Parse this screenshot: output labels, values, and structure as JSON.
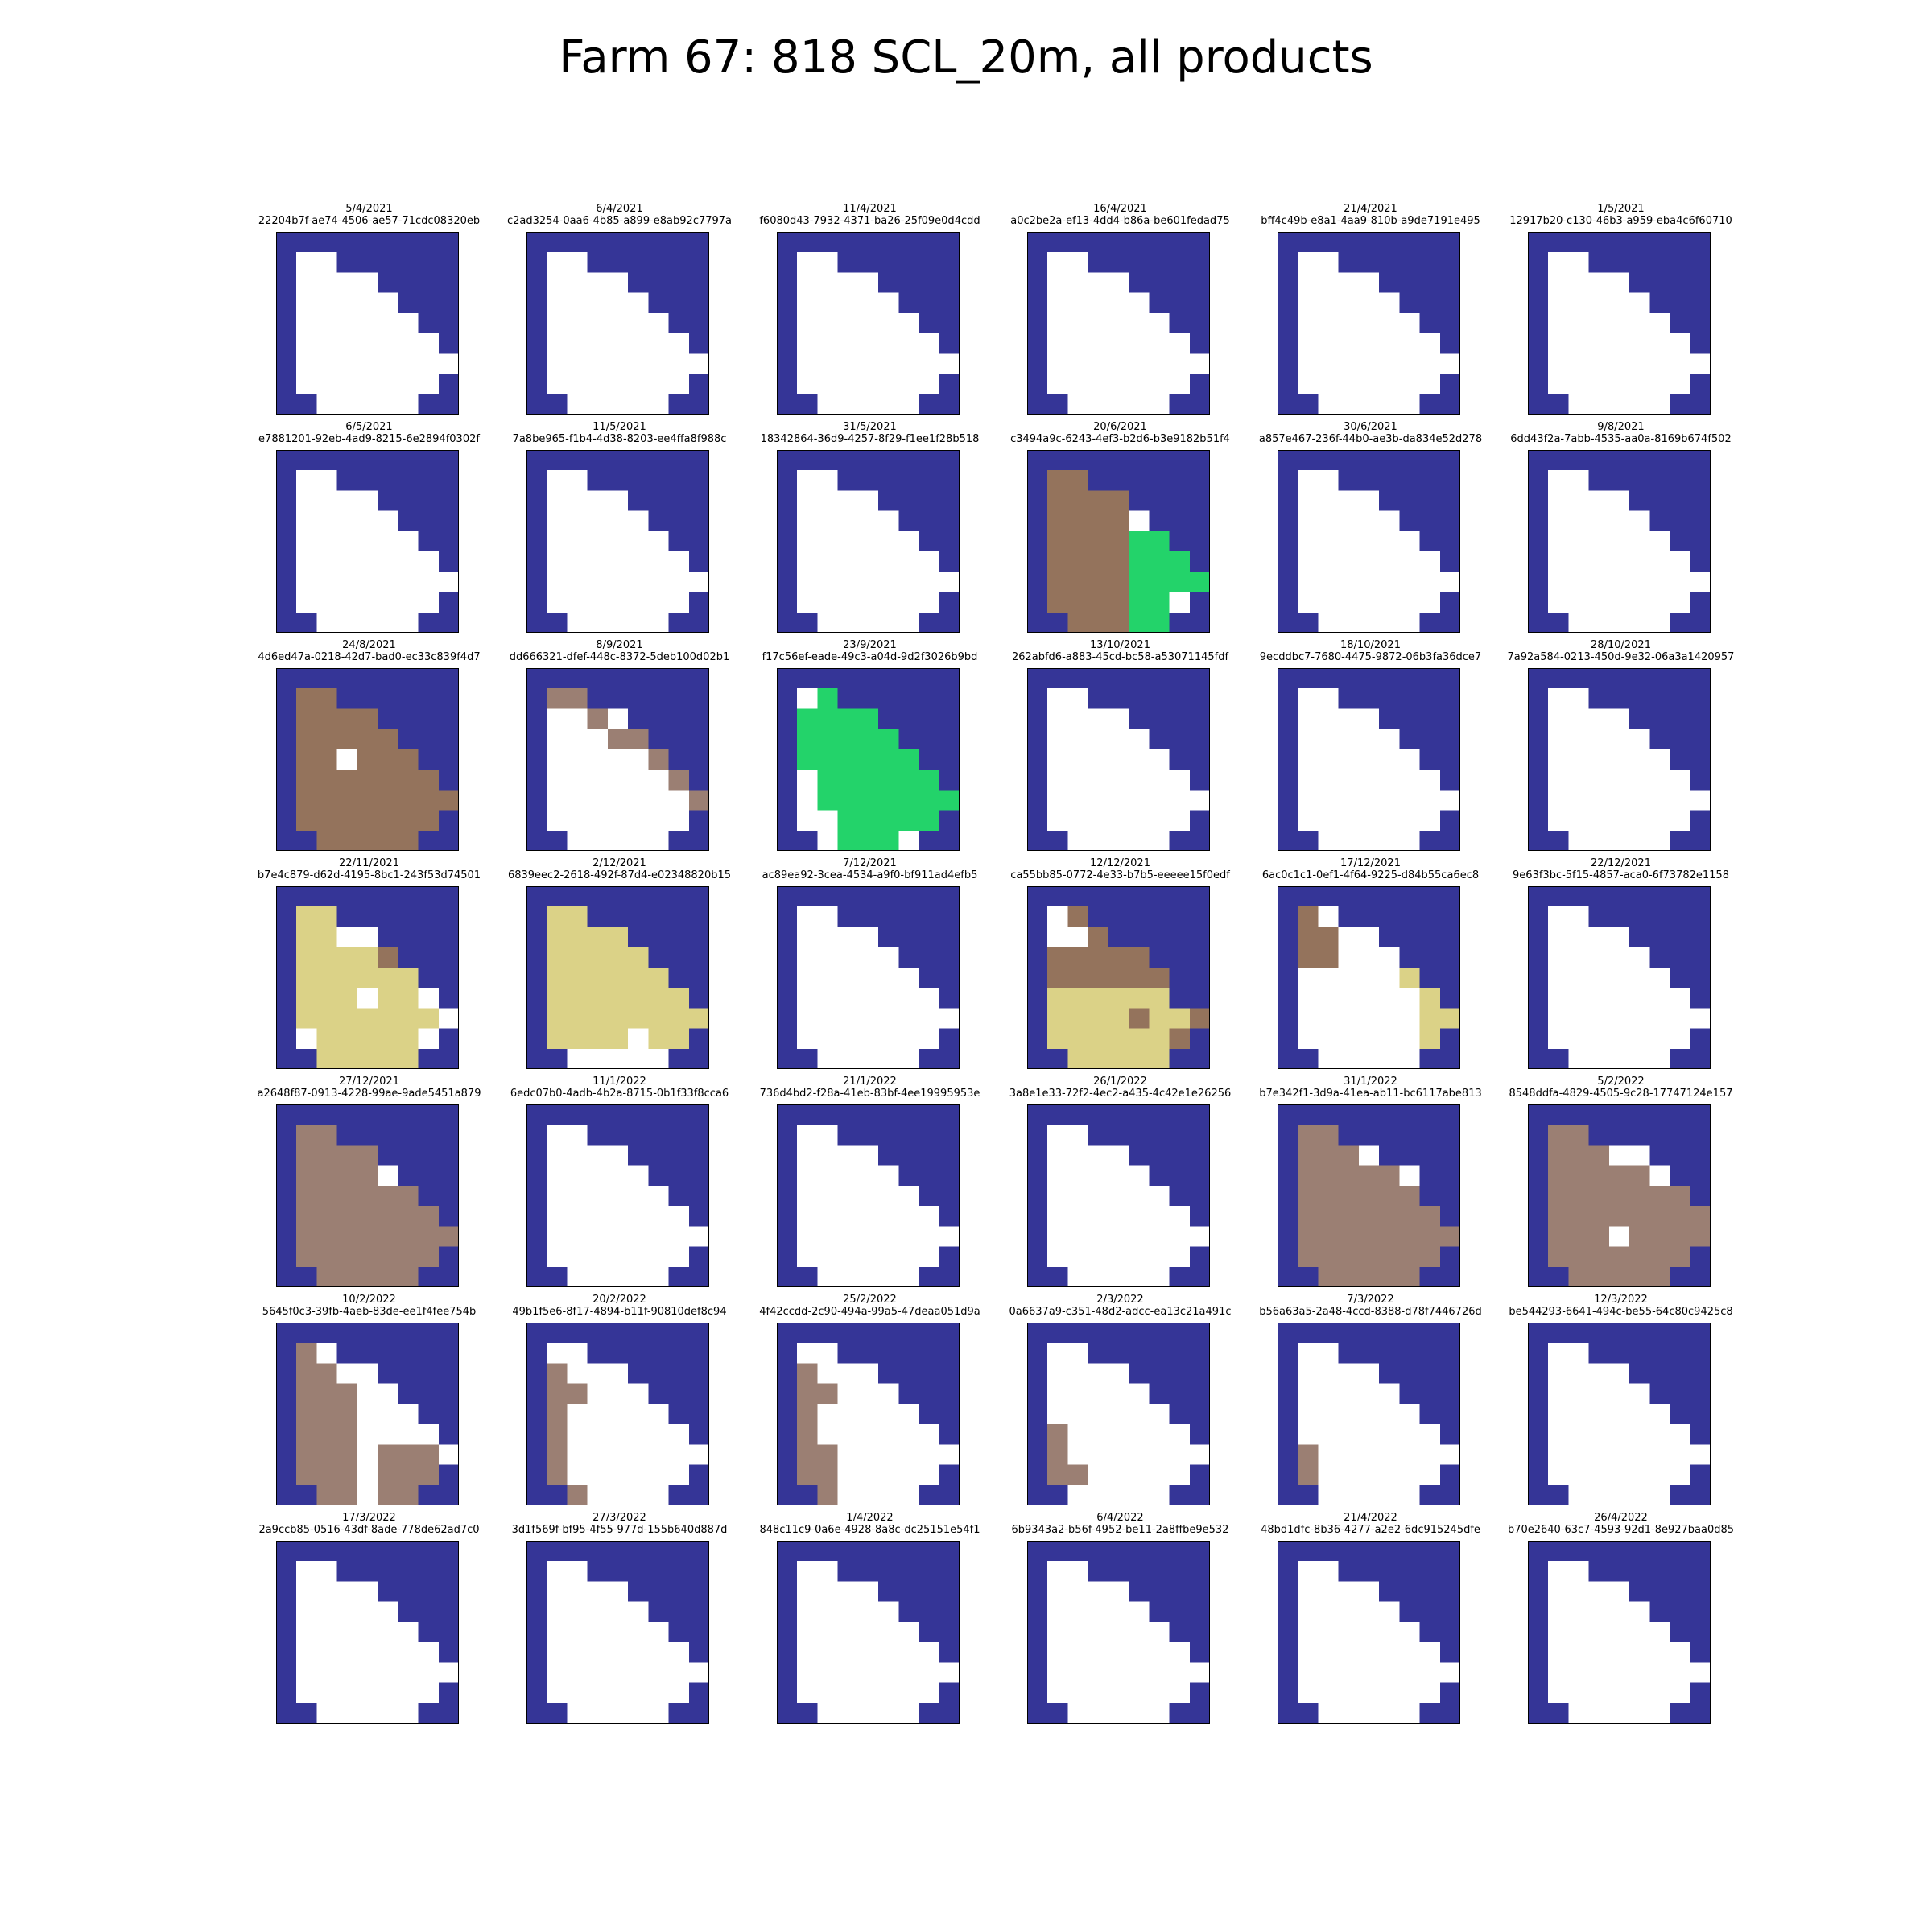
{
  "title": "Farm 67: 818 SCL_20m, all products",
  "chart_data": {
    "type": "heatmap",
    "title": "Farm 67: 818 SCL_20m, all products",
    "grid": false,
    "palette": {
      "W": "#ffffff",
      "N": "#353597",
      "B": "#94735c",
      "T": "#9b7f73",
      "G": "#23d36a",
      "Y": "#dbd287"
    },
    "base_mask": [
      "NNNNNNNNN",
      "NWWNNNNNN",
      "NWWWWNNNN",
      "NWWWWWNNN",
      "NWWWWWWNN",
      "NWWWWWWWN",
      "NWWWWWWWW",
      "NWWWWWWWN",
      "NNWWWWWNN"
    ],
    "panels": [
      {
        "date": "5/4/2021",
        "id": "22204b7f-ae74-4506-ae57-71cdc08320eb",
        "overlay": []
      },
      {
        "date": "6/4/2021",
        "id": "c2ad3254-0aa6-4b85-a899-e8ab92c7797a",
        "overlay": []
      },
      {
        "date": "11/4/2021",
        "id": "f6080d43-7932-4371-ba26-25f09e0d4cdd",
        "overlay": []
      },
      {
        "date": "16/4/2021",
        "id": "a0c2be2a-ef13-4dd4-b86a-be601fedad75",
        "overlay": []
      },
      {
        "date": "21/4/2021",
        "id": "bff4c49b-e8a1-4aa9-810b-a9de7191e495",
        "overlay": []
      },
      {
        "date": "1/5/2021",
        "id": "12917b20-c130-46b3-a959-eba4c6f60710",
        "overlay": []
      },
      {
        "date": "6/5/2021",
        "id": "e7881201-92eb-4ad9-8215-6e2894f0302f",
        "overlay": []
      },
      {
        "date": "11/5/2021",
        "id": "7a8be965-f1b4-4d38-8203-ee4ffa8f988c",
        "overlay": []
      },
      {
        "date": "31/5/2021",
        "id": "18342864-36d9-4257-8f29-f1ee1f28b518",
        "overlay": []
      },
      {
        "date": "20/6/2021",
        "id": "c3494a9c-6243-4ef3-b2d6-b3e9182b51f4",
        "overlay": [
          ".........",
          ".BB......",
          ".BBBB....",
          ".BBBBW...",
          ".BBBBGG..",
          ".BBBBGGG.",
          ".BBBBGGGG",
          ".BBBBGG..",
          "..BBBGG.."
        ]
      },
      {
        "date": "30/6/2021",
        "id": "a857e467-236f-44b0-ae3b-da834e52d278",
        "overlay": []
      },
      {
        "date": "9/8/2021",
        "id": "6dd43f2a-7abb-4535-aa0a-8169b674f502",
        "overlay": []
      },
      {
        "date": "24/8/2021",
        "id": "4d6ed47a-0218-42d7-bad0-ec33c839f4d7",
        "overlay": [
          ".........",
          ".BB......",
          ".BBBB....",
          ".BBBBB...",
          ".BBWBBB..",
          ".BBBBBBB.",
          ".BBBBBBBB",
          ".BBBBBBB.",
          "..BBBBB.."
        ]
      },
      {
        "date": "8/9/2021",
        "id": "dd666321-dfef-448c-8372-5deb100d02b1",
        "overlay": [
          ".........",
          ".TT......",
          ".WWT.....",
          ".WWWTT...",
          ".WWWWWT..",
          ".WWWWWWT.",
          ".WWWWWWWT",
          ".........",
          "........."
        ]
      },
      {
        "date": "23/9/2021",
        "id": "f17c56ef-eade-49c3-a04d-9d2f3026b9bd",
        "overlay": [
          ".........",
          ".WG......",
          ".GGGG....",
          ".GGGGG...",
          ".GGGGGG..",
          ".WGGGGGG.",
          ".WGGGGGGG",
          ".WWGGGGG.",
          "..WGGGW.."
        ]
      },
      {
        "date": "13/10/2021",
        "id": "262abfd6-a883-45cd-bc58-a53071145fdf",
        "overlay": []
      },
      {
        "date": "18/10/2021",
        "id": "9ecddbc7-7680-4475-9872-06b3fa36dce7",
        "overlay": []
      },
      {
        "date": "28/10/2021",
        "id": "7a92a584-0213-450d-9e32-06a3a1420957",
        "overlay": []
      },
      {
        "date": "22/11/2021",
        "id": "b7e4c879-d62d-4195-8bc1-243f53d74501",
        "overlay": [
          ".........",
          ".YY......",
          ".YYWW....",
          ".YYYYB...",
          ".YYYYYY..",
          ".YYYWYY..",
          ".YYYYYYYW",
          ".WYYYYY..",
          "..YYYYY.."
        ]
      },
      {
        "date": "2/12/2021",
        "id": "6839eec2-2618-492f-87d4-e02348820b15",
        "overlay": [
          ".........",
          ".YY......",
          ".YYYY....",
          ".YYYYY...",
          ".YYYYYY..",
          ".YYYYYYY.",
          ".YYYYYYYY",
          ".YYYYWYY.",
          "..WWWWW.."
        ]
      },
      {
        "date": "7/12/2021",
        "id": "ac89ea92-3cea-4534-a9f0-bf911ad4efb5",
        "overlay": []
      },
      {
        "date": "12/12/2021",
        "id": "ca55bb85-0772-4e33-b7b5-eeeee15f0edf",
        "overlay": [
          ".........",
          ".WB......",
          ".WWBN....",
          ".BBBBB...",
          ".BBBBBB..",
          ".YYYYYYN.",
          ".YYYYBYYB",
          ".YYYYYYB.",
          "..YYYYY.."
        ]
      },
      {
        "date": "17/12/2021",
        "id": "6ac0c1c1-0ef1-4f64-9225-d84b55ca6ec8",
        "overlay": [
          ".........",
          ".BW......",
          ".BBWW....",
          ".BBWWW...",
          ".WWWWWY..",
          ".WWWWWWY.",
          ".WWWWWWYY",
          ".WWWWWWY.",
          "..WWWWW.."
        ]
      },
      {
        "date": "22/12/2021",
        "id": "9e63f3bc-5f15-4857-aca0-6f73782e1158",
        "overlay": []
      },
      {
        "date": "27/12/2021",
        "id": "a2648f87-0913-4228-99ae-9ade5451a879",
        "overlay": [
          ".........",
          ".TT......",
          ".TTTT....",
          ".TTTTW...",
          ".TTTTTT..",
          ".TTTTTTT.",
          ".TTTTTTTT",
          ".TTTTTTT.",
          "..TTTTT.."
        ]
      },
      {
        "date": "11/1/2022",
        "id": "6edc07b0-4adb-4b2a-8715-0b1f33f8cca6",
        "overlay": []
      },
      {
        "date": "21/1/2022",
        "id": "736d4bd2-f28a-41eb-83bf-4ee19995953e",
        "overlay": []
      },
      {
        "date": "26/1/2022",
        "id": "3a8e1e33-72f2-4ec2-a435-4c42e1e26256",
        "overlay": []
      },
      {
        "date": "31/1/2022",
        "id": "b7e342f1-3d9a-41ea-ab11-bc6117abe813",
        "overlay": [
          ".........",
          ".TT......",
          ".TTTW....",
          ".TTTTTW..",
          ".TTTTTT..",
          ".TTTTTTT.",
          ".TTTTTTTT",
          ".TTTTTTT.",
          "..TTTTT.."
        ]
      },
      {
        "date": "5/2/2022",
        "id": "8548ddfa-4829-4505-9c28-17747124e157",
        "overlay": [
          ".........",
          ".TT......",
          ".TTTWW...",
          ".TTTTTW..",
          ".TTTTTTT.",
          ".TTTTTTTT",
          ".TTTWTTTT",
          ".TTTTTTT.",
          "..TTTTT.."
        ]
      },
      {
        "date": "10/2/2022",
        "id": "5645f0c3-39fb-4aeb-83de-ee1f4fee754b",
        "overlay": [
          ".........",
          ".TW......",
          ".TTWW....",
          ".TTTWW...",
          ".TTTWWW..",
          ".TTTWWWW.",
          ".TTTWTTTW",
          ".TTTWTTT.",
          "..TTWTT.."
        ]
      },
      {
        "date": "20/2/2022",
        "id": "49b1f5e6-8f17-4894-b11f-90810def8c94",
        "overlay": [
          ".........",
          ".WW......",
          ".TWWW....",
          ".TTWWW...",
          ".TWWWWW..",
          ".TWWWWWW.",
          ".TWWWWWWW",
          ".TWWWWWW.",
          "..TWWWW.."
        ]
      },
      {
        "date": "25/2/2022",
        "id": "4f42ccdd-2c90-494a-99a5-47deaa051d9a",
        "overlay": [
          ".........",
          ".WW......",
          ".TWWW....",
          ".TTWWW...",
          ".TWWWWW..",
          ".TWWWWWW.",
          ".TTWWWWWW",
          ".TTWWWWW.",
          "..TWWWW.."
        ]
      },
      {
        "date": "2/3/2022",
        "id": "0a6637a9-c351-48d2-adcc-ea13c21a491c",
        "overlay": [
          ".........",
          ".WW......",
          ".WWWW....",
          ".WWWWW...",
          ".WWWWWW..",
          ".TWWWWWW.",
          ".TWWWWWWW",
          ".TTWWWWW.",
          "..WWWWW.."
        ]
      },
      {
        "date": "7/3/2022",
        "id": "b56a63a5-2a48-4ccd-8388-d78f7446726d",
        "overlay": [
          ".........",
          ".WW......",
          ".WWWW....",
          ".WWWWW...",
          ".WWWWWW..",
          ".WWWWWWW.",
          ".TWWWWWWW",
          ".TWWWWWW.",
          "..WWWWW.."
        ]
      },
      {
        "date": "12/3/2022",
        "id": "be544293-6641-494c-be55-64c80c9425c8",
        "overlay": []
      },
      {
        "date": "17/3/2022",
        "id": "2a9ccb85-0516-43df-8ade-778de62ad7c0",
        "overlay": []
      },
      {
        "date": "27/3/2022",
        "id": "3d1f569f-bf95-4f55-977d-155b640d887d",
        "overlay": []
      },
      {
        "date": "1/4/2022",
        "id": "848c11c9-0a6e-4928-8a8c-dc25151e54f1",
        "overlay": []
      },
      {
        "date": "6/4/2022",
        "id": "6b9343a2-b56f-4952-be11-2a8ffbe9e532",
        "overlay": []
      },
      {
        "date": "21/4/2022",
        "id": "48bd1dfc-8b36-4277-a2e2-6dc915245dfe",
        "overlay": []
      },
      {
        "date": "26/4/2022",
        "id": "b70e2640-63c7-4593-92d1-8e927baa0d85",
        "overlay": []
      }
    ]
  }
}
